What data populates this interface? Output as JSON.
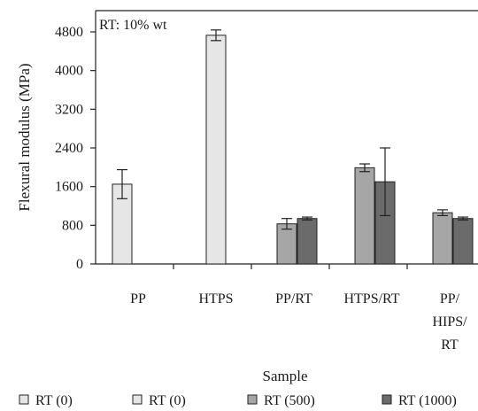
{
  "chart_data": {
    "type": "bar",
    "annotation": "RT: 10% wt",
    "xlabel": "Sample",
    "ylabel": "Flexural modulus (MPa)",
    "ylim": [
      0,
      4800
    ],
    "yticks": [
      0,
      800,
      1600,
      2400,
      3200,
      4000,
      4800
    ],
    "categories": [
      [
        "PP"
      ],
      [
        "HTPS"
      ],
      [
        "PP/RT"
      ],
      [
        "HTPS/RT"
      ],
      [
        "PP/",
        "HIPS/",
        "RT"
      ]
    ],
    "series": [
      {
        "name": "RT (0)",
        "color": "#e6e6e6",
        "values": [
          1650,
          null,
          null,
          null,
          null
        ],
        "errors": [
          300,
          null,
          null,
          null,
          null
        ]
      },
      {
        "name": "RT (0)",
        "color": "#e6e6e6",
        "values": [
          null,
          4730,
          null,
          null,
          null
        ],
        "errors": [
          null,
          110,
          null,
          null,
          null
        ]
      },
      {
        "name": "RT (500)",
        "color": "#a6a6a6",
        "values": [
          null,
          null,
          830,
          1990,
          1060
        ],
        "errors": [
          null,
          null,
          110,
          80,
          60
        ]
      },
      {
        "name": "RT (1000)",
        "color": "#6b6b6b",
        "values": [
          null,
          null,
          940,
          1700,
          940
        ],
        "errors": [
          null,
          null,
          30,
          700,
          30
        ]
      }
    ],
    "grid": false,
    "legend_position": "bottom"
  }
}
